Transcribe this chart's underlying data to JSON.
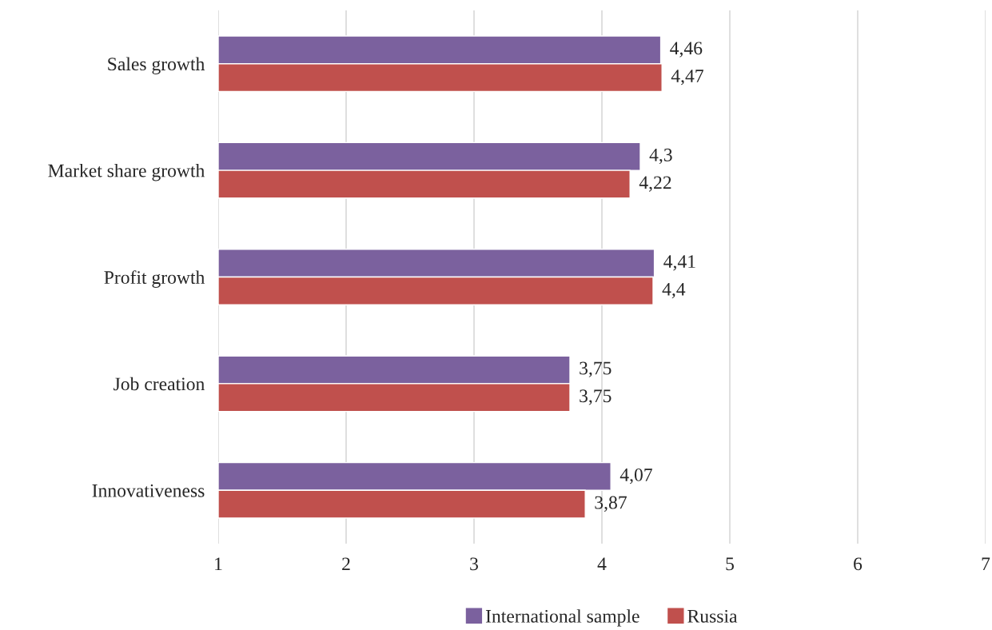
{
  "chart_data": {
    "type": "bar",
    "orientation": "horizontal",
    "categories": [
      "Sales growth",
      "Market share growth",
      "Profit growth",
      "Job creation",
      "Innovativeness"
    ],
    "series": [
      {
        "name": "International sample",
        "color": "#7b619e",
        "values": [
          4.46,
          4.3,
          4.41,
          3.75,
          4.07
        ],
        "value_labels": [
          "4,46",
          "4,3",
          "4,41",
          "3,75",
          "4,07"
        ]
      },
      {
        "name": "Russia",
        "color": "#c0504d",
        "values": [
          4.47,
          4.22,
          4.4,
          3.75,
          3.87
        ],
        "value_labels": [
          "4,47",
          "4,22",
          "4,4",
          "3,75",
          "3,87"
        ]
      }
    ],
    "xlim": [
      1,
      7
    ],
    "xticks": [
      1,
      2,
      3,
      4,
      5,
      6,
      7
    ],
    "grid": "x",
    "legend": "bottom"
  }
}
